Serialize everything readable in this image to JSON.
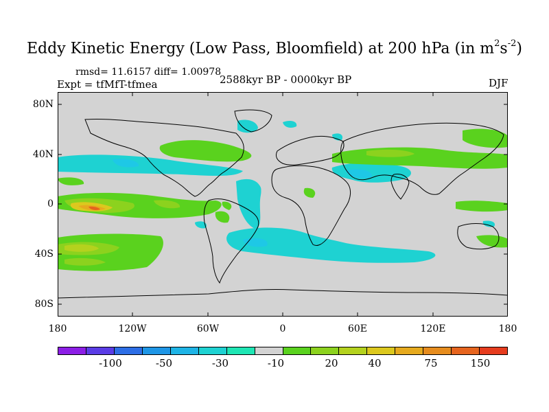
{
  "title": {
    "text": "Eddy Kinetic Energy (Low Pass, Bloomfield) at 200 hPa (in m",
    "sup1": "2",
    "mid": "s",
    "sup2": "-2",
    "close": ")"
  },
  "stats": "rmsd= 11.6157 diff= 1.00978",
  "experiment": "Expt = tfMfT-tfmea",
  "period": "2588kyr BP - 0000kyr BP",
  "season": "DJF",
  "map": {
    "projection": "cylindrical-equidistant",
    "lon_range": [
      -180,
      180
    ],
    "lat_range": [
      -90,
      90
    ],
    "background_color": "#d3d3d3",
    "lat_labels": [
      "80N",
      "40N",
      "0",
      "40S",
      "80S"
    ],
    "lon_labels": [
      "180",
      "120W",
      "60W",
      "0",
      "60E",
      "120E",
      "180"
    ]
  },
  "colorbar": {
    "colors": [
      "#8c1ee6",
      "#5a3ce6",
      "#2d6ee6",
      "#1e96e6",
      "#1eb4e6",
      "#1ed2d2",
      "#1ee6b4",
      "#d3d3d3",
      "#5ad21e",
      "#8cd21e",
      "#b4d21e",
      "#dcc81e",
      "#e6aa1e",
      "#e68c1e",
      "#e6641e",
      "#e63c1e"
    ],
    "labels": [
      "-100",
      "-50",
      "-30",
      "-10",
      "20",
      "40",
      "75",
      "150"
    ]
  },
  "anomaly_regions": [
    {
      "name": "north-atlantic-positive",
      "level": "20"
    },
    {
      "name": "north-pacific-negative",
      "level": "-10"
    },
    {
      "name": "tropical-pacific-positive",
      "level": "75"
    },
    {
      "name": "south-pacific-positive",
      "level": "40"
    },
    {
      "name": "south-atlantic-negative",
      "level": "-30"
    },
    {
      "name": "indian-ocean-negative",
      "level": "-10"
    },
    {
      "name": "asia-positive",
      "level": "20"
    }
  ]
}
